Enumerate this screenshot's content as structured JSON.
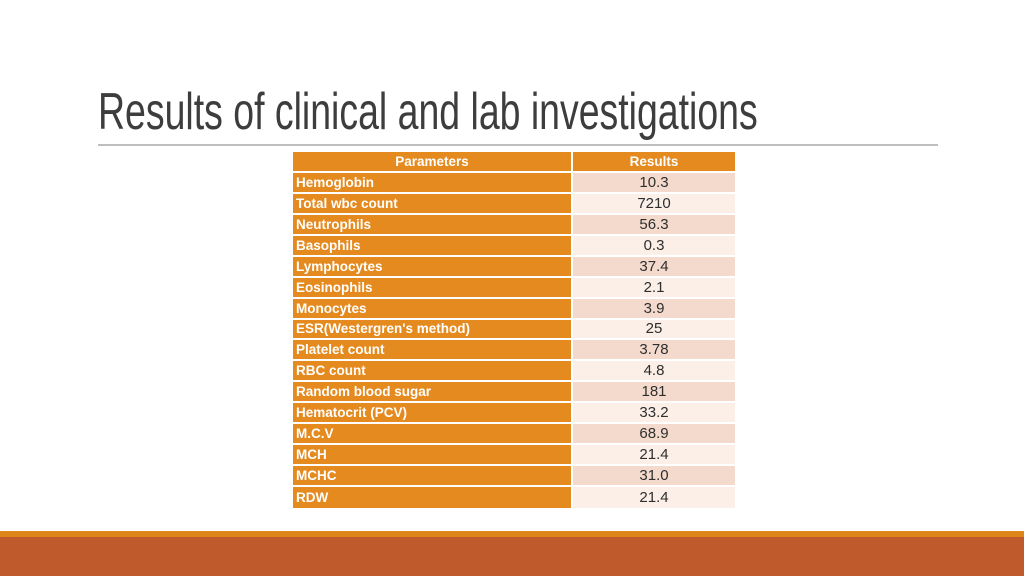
{
  "slide": {
    "title": "Results of clinical and lab investigations",
    "table": {
      "headers": [
        "Parameters",
        "Results"
      ],
      "rows": [
        {
          "parameter": "Hemoglobin",
          "result": "10.3"
        },
        {
          "parameter": "Total wbc count",
          "result": "7210"
        },
        {
          "parameter": "Neutrophils",
          "result": "56.3"
        },
        {
          "parameter": "Basophils",
          "result": "0.3"
        },
        {
          "parameter": "Lymphocytes",
          "result": "37.4"
        },
        {
          "parameter": "Eosinophils",
          "result": "2.1"
        },
        {
          "parameter": "Monocytes",
          "result": "3.9"
        },
        {
          "parameter": "ESR(Westergren's method)",
          "result": "25"
        },
        {
          "parameter": "Platelet count",
          "result": "3.78"
        },
        {
          "parameter": "RBC count",
          "result": "4.8"
        },
        {
          "parameter": "Random blood sugar",
          "result": "181"
        },
        {
          "parameter": "Hematocrit (PCV)",
          "result": "33.2"
        },
        {
          "parameter": "M.C.V",
          "result": "68.9"
        },
        {
          "parameter": "MCH",
          "result": "21.4"
        },
        {
          "parameter": "MCHC",
          "result": "31.0"
        },
        {
          "parameter": "RDW",
          "result": "21.4"
        }
      ]
    },
    "colors": {
      "accent_orange": "#e58a1e",
      "band_dark": "#f4dacc",
      "band_light": "#fbefe8",
      "footer_strip": "#df861b",
      "footer_bar": "#be5a2b",
      "title_text": "#3d3d3d",
      "underline": "#bebebe"
    }
  }
}
